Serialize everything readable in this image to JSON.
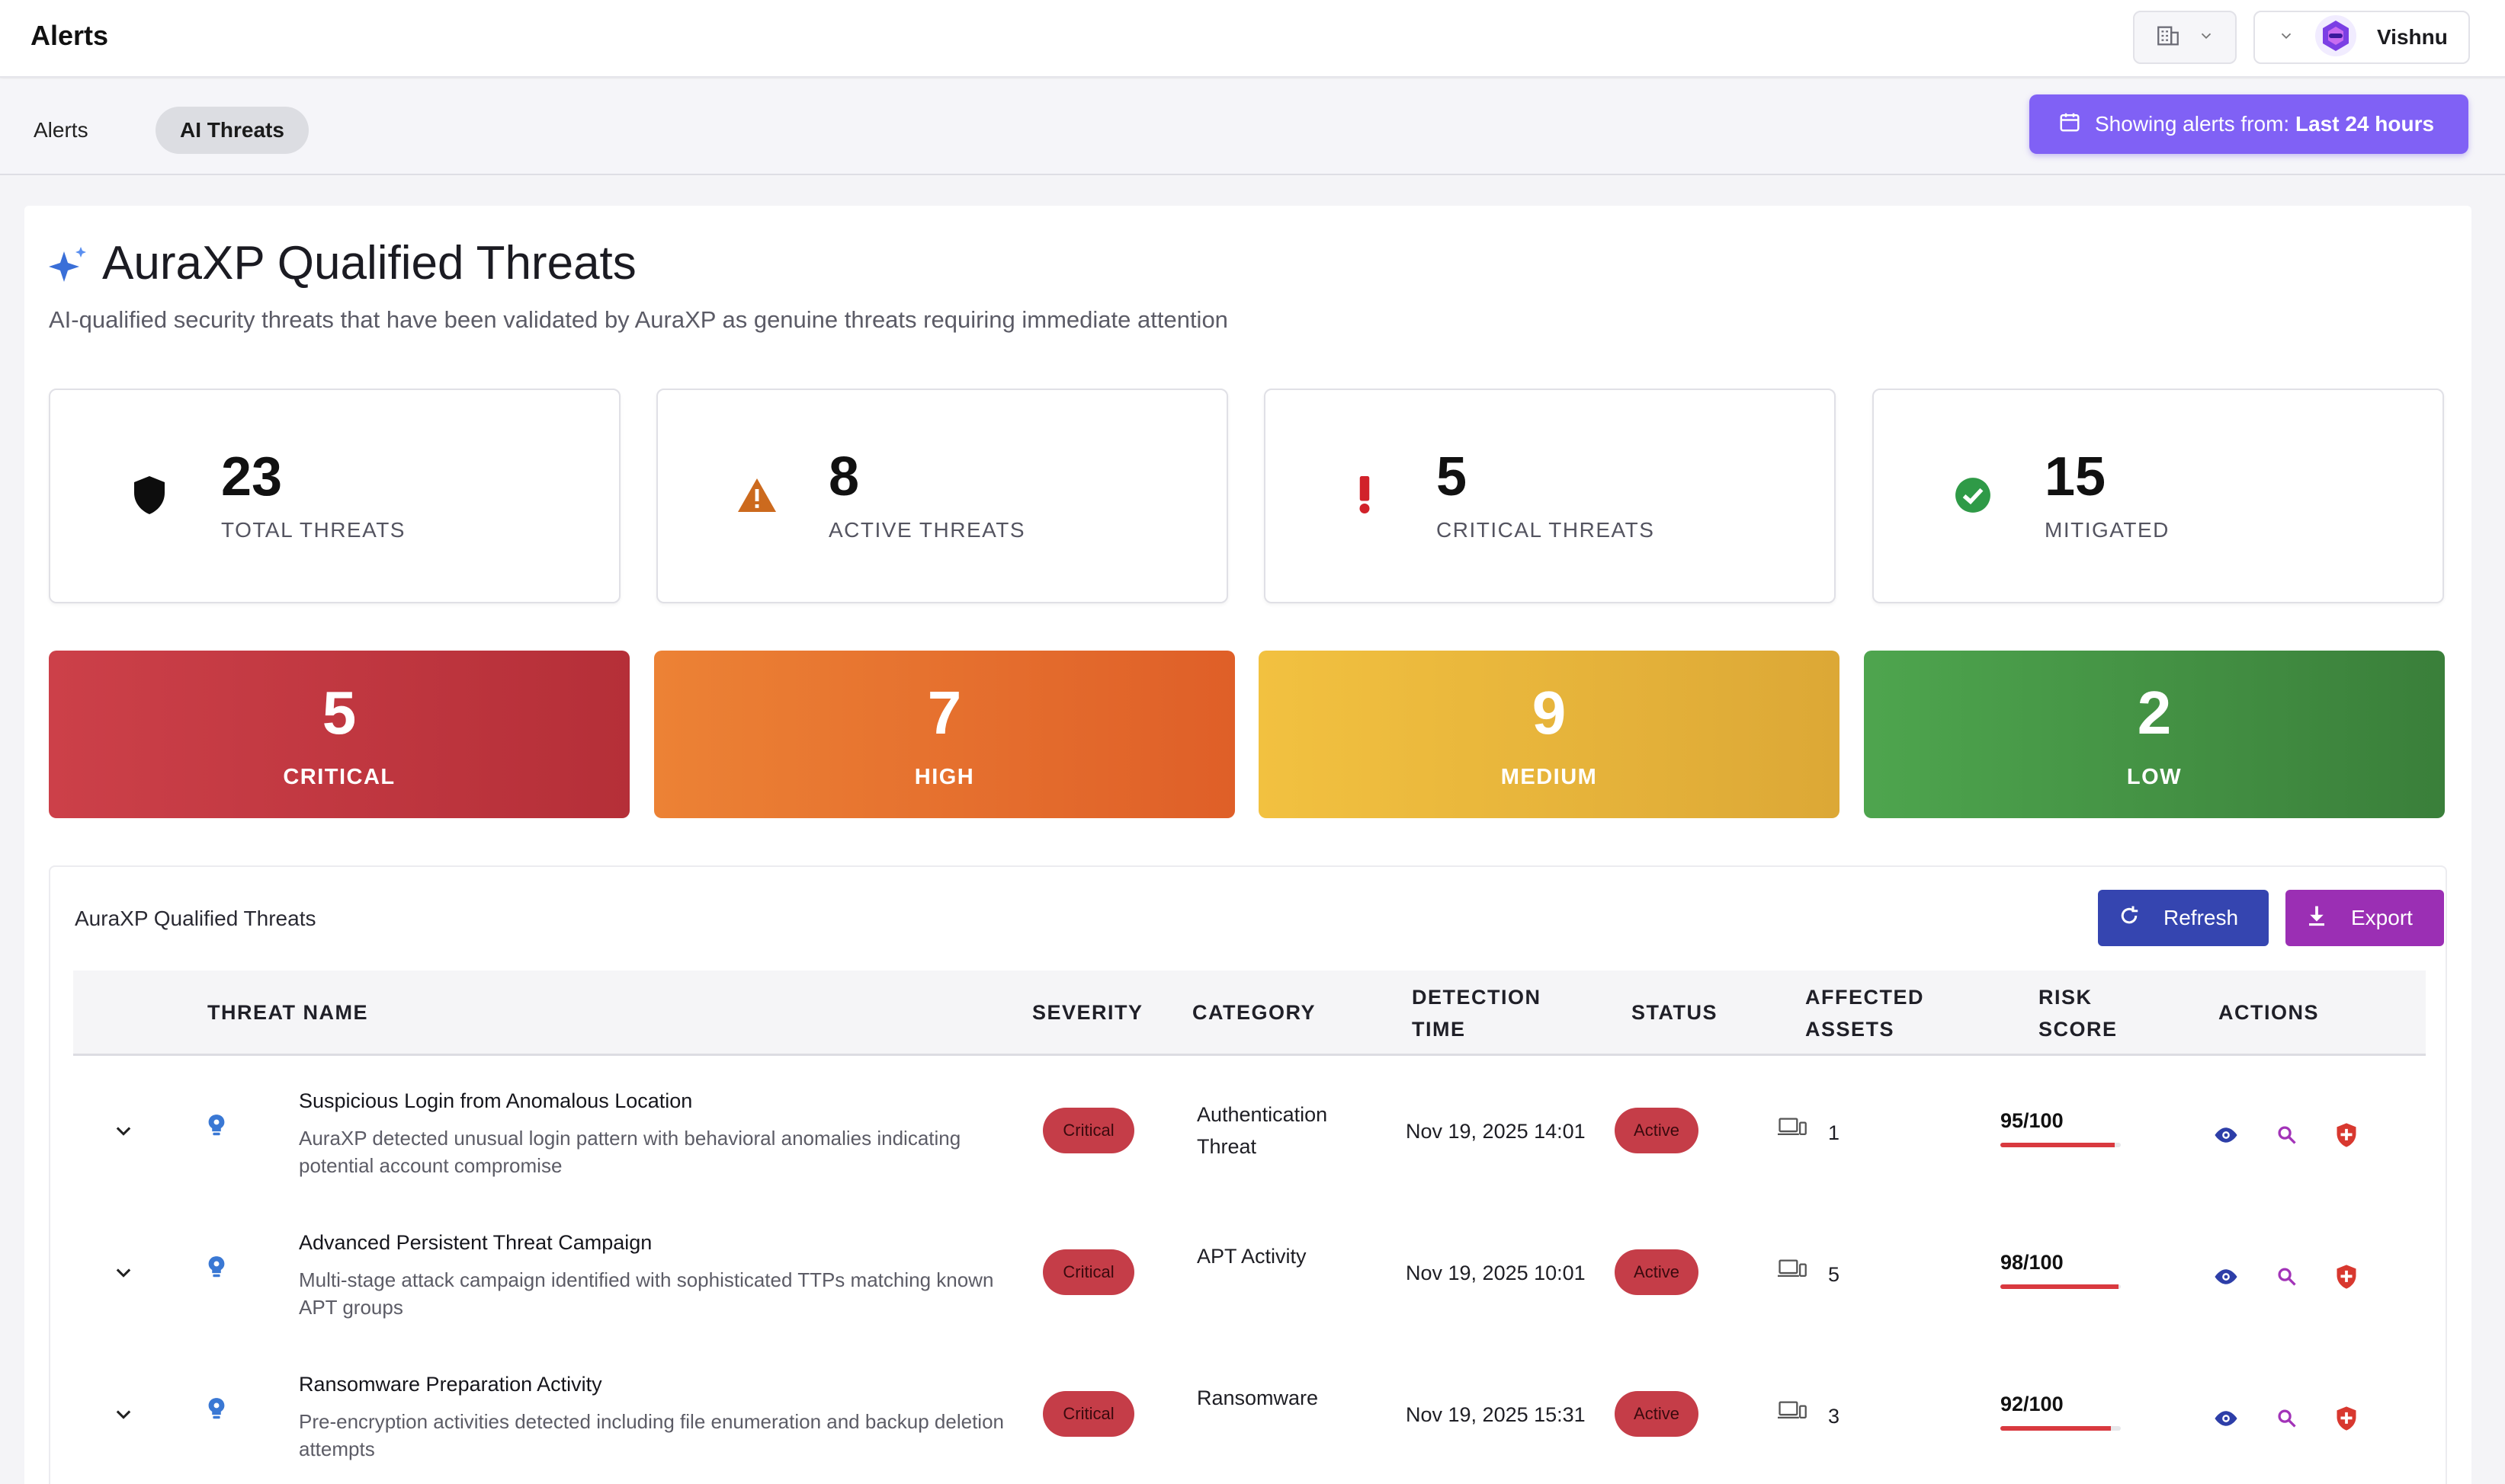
{
  "header": {
    "app_title": "Alerts",
    "user_name": "Vishnu"
  },
  "subnav": {
    "tabs": [
      {
        "label": "Alerts"
      },
      {
        "label": "AI Threats"
      }
    ],
    "range_prefix": "Showing alerts from:",
    "range_value": "Last 24 hours"
  },
  "page": {
    "title": "AuraXP Qualified Threats",
    "subtitle": "AI-qualified security threats that have been validated by AuraXP as genuine threats requiring immediate attention"
  },
  "stats": [
    {
      "value": "23",
      "label": "TOTAL THREATS",
      "icon": "shield-icon"
    },
    {
      "value": "8",
      "label": "ACTIVE THREATS",
      "icon": "warning-icon"
    },
    {
      "value": "5",
      "label": "CRITICAL THREATS",
      "icon": "exclamation-icon"
    },
    {
      "value": "15",
      "label": "MITIGATED",
      "icon": "check-circle-icon"
    }
  ],
  "severity": [
    {
      "value": "5",
      "label": "CRITICAL",
      "color": "#c8353f"
    },
    {
      "value": "7",
      "label": "HIGH",
      "color": "#e5642c"
    },
    {
      "value": "9",
      "label": "MEDIUM",
      "color": "#e9b23a"
    },
    {
      "value": "2",
      "label": "LOW",
      "color": "#3f8f3f"
    }
  ],
  "table": {
    "title": "AuraXP Qualified Threats",
    "refresh_label": "Refresh",
    "export_label": "Export",
    "columns": {
      "name": "THREAT NAME",
      "severity": "SEVERITY",
      "category": "CATEGORY",
      "detection_1": "DETECTION",
      "detection_2": "TIME",
      "status": "STATUS",
      "assets_1": "AFFECTED",
      "assets_2": "ASSETS",
      "risk_1": "RISK",
      "risk_2": "SCORE",
      "actions": "ACTIONS"
    },
    "rows": [
      {
        "name": "Suspicious Login from Anomalous Location",
        "desc_1": "AuraXP detected unusual login pattern with behavioral anomalies indicating",
        "desc_2": "potential account compromise",
        "severity": "Critical",
        "category_1": "Authentication",
        "category_2": "Threat",
        "detected": "Nov 19, 2025 14:01",
        "status": "Active",
        "assets": "1",
        "risk": "95/100",
        "risk_fraction": 0.95
      },
      {
        "name": "Advanced Persistent Threat Campaign",
        "desc_1": "Multi-stage attack campaign identified with sophisticated TTPs matching known",
        "desc_2": "APT groups",
        "severity": "Critical",
        "category_1": "APT Activity",
        "category_2": "",
        "detected": "Nov 19, 2025 10:01",
        "status": "Active",
        "assets": "5",
        "risk": "98/100",
        "risk_fraction": 0.98
      },
      {
        "name": "Ransomware Preparation Activity",
        "desc_1": "Pre-encryption activities detected including file enumeration and backup deletion",
        "desc_2": "attempts",
        "severity": "Critical",
        "category_1": "Ransomware",
        "category_2": "",
        "detected": "Nov 19, 2025 15:31",
        "status": "Active",
        "assets": "3",
        "risk": "92/100",
        "risk_fraction": 0.92
      }
    ]
  },
  "colors": {
    "accent": "#8061f5",
    "refresh": "#3545b0",
    "export": "#9b2fb4",
    "critical_pill": "#c53d48"
  }
}
